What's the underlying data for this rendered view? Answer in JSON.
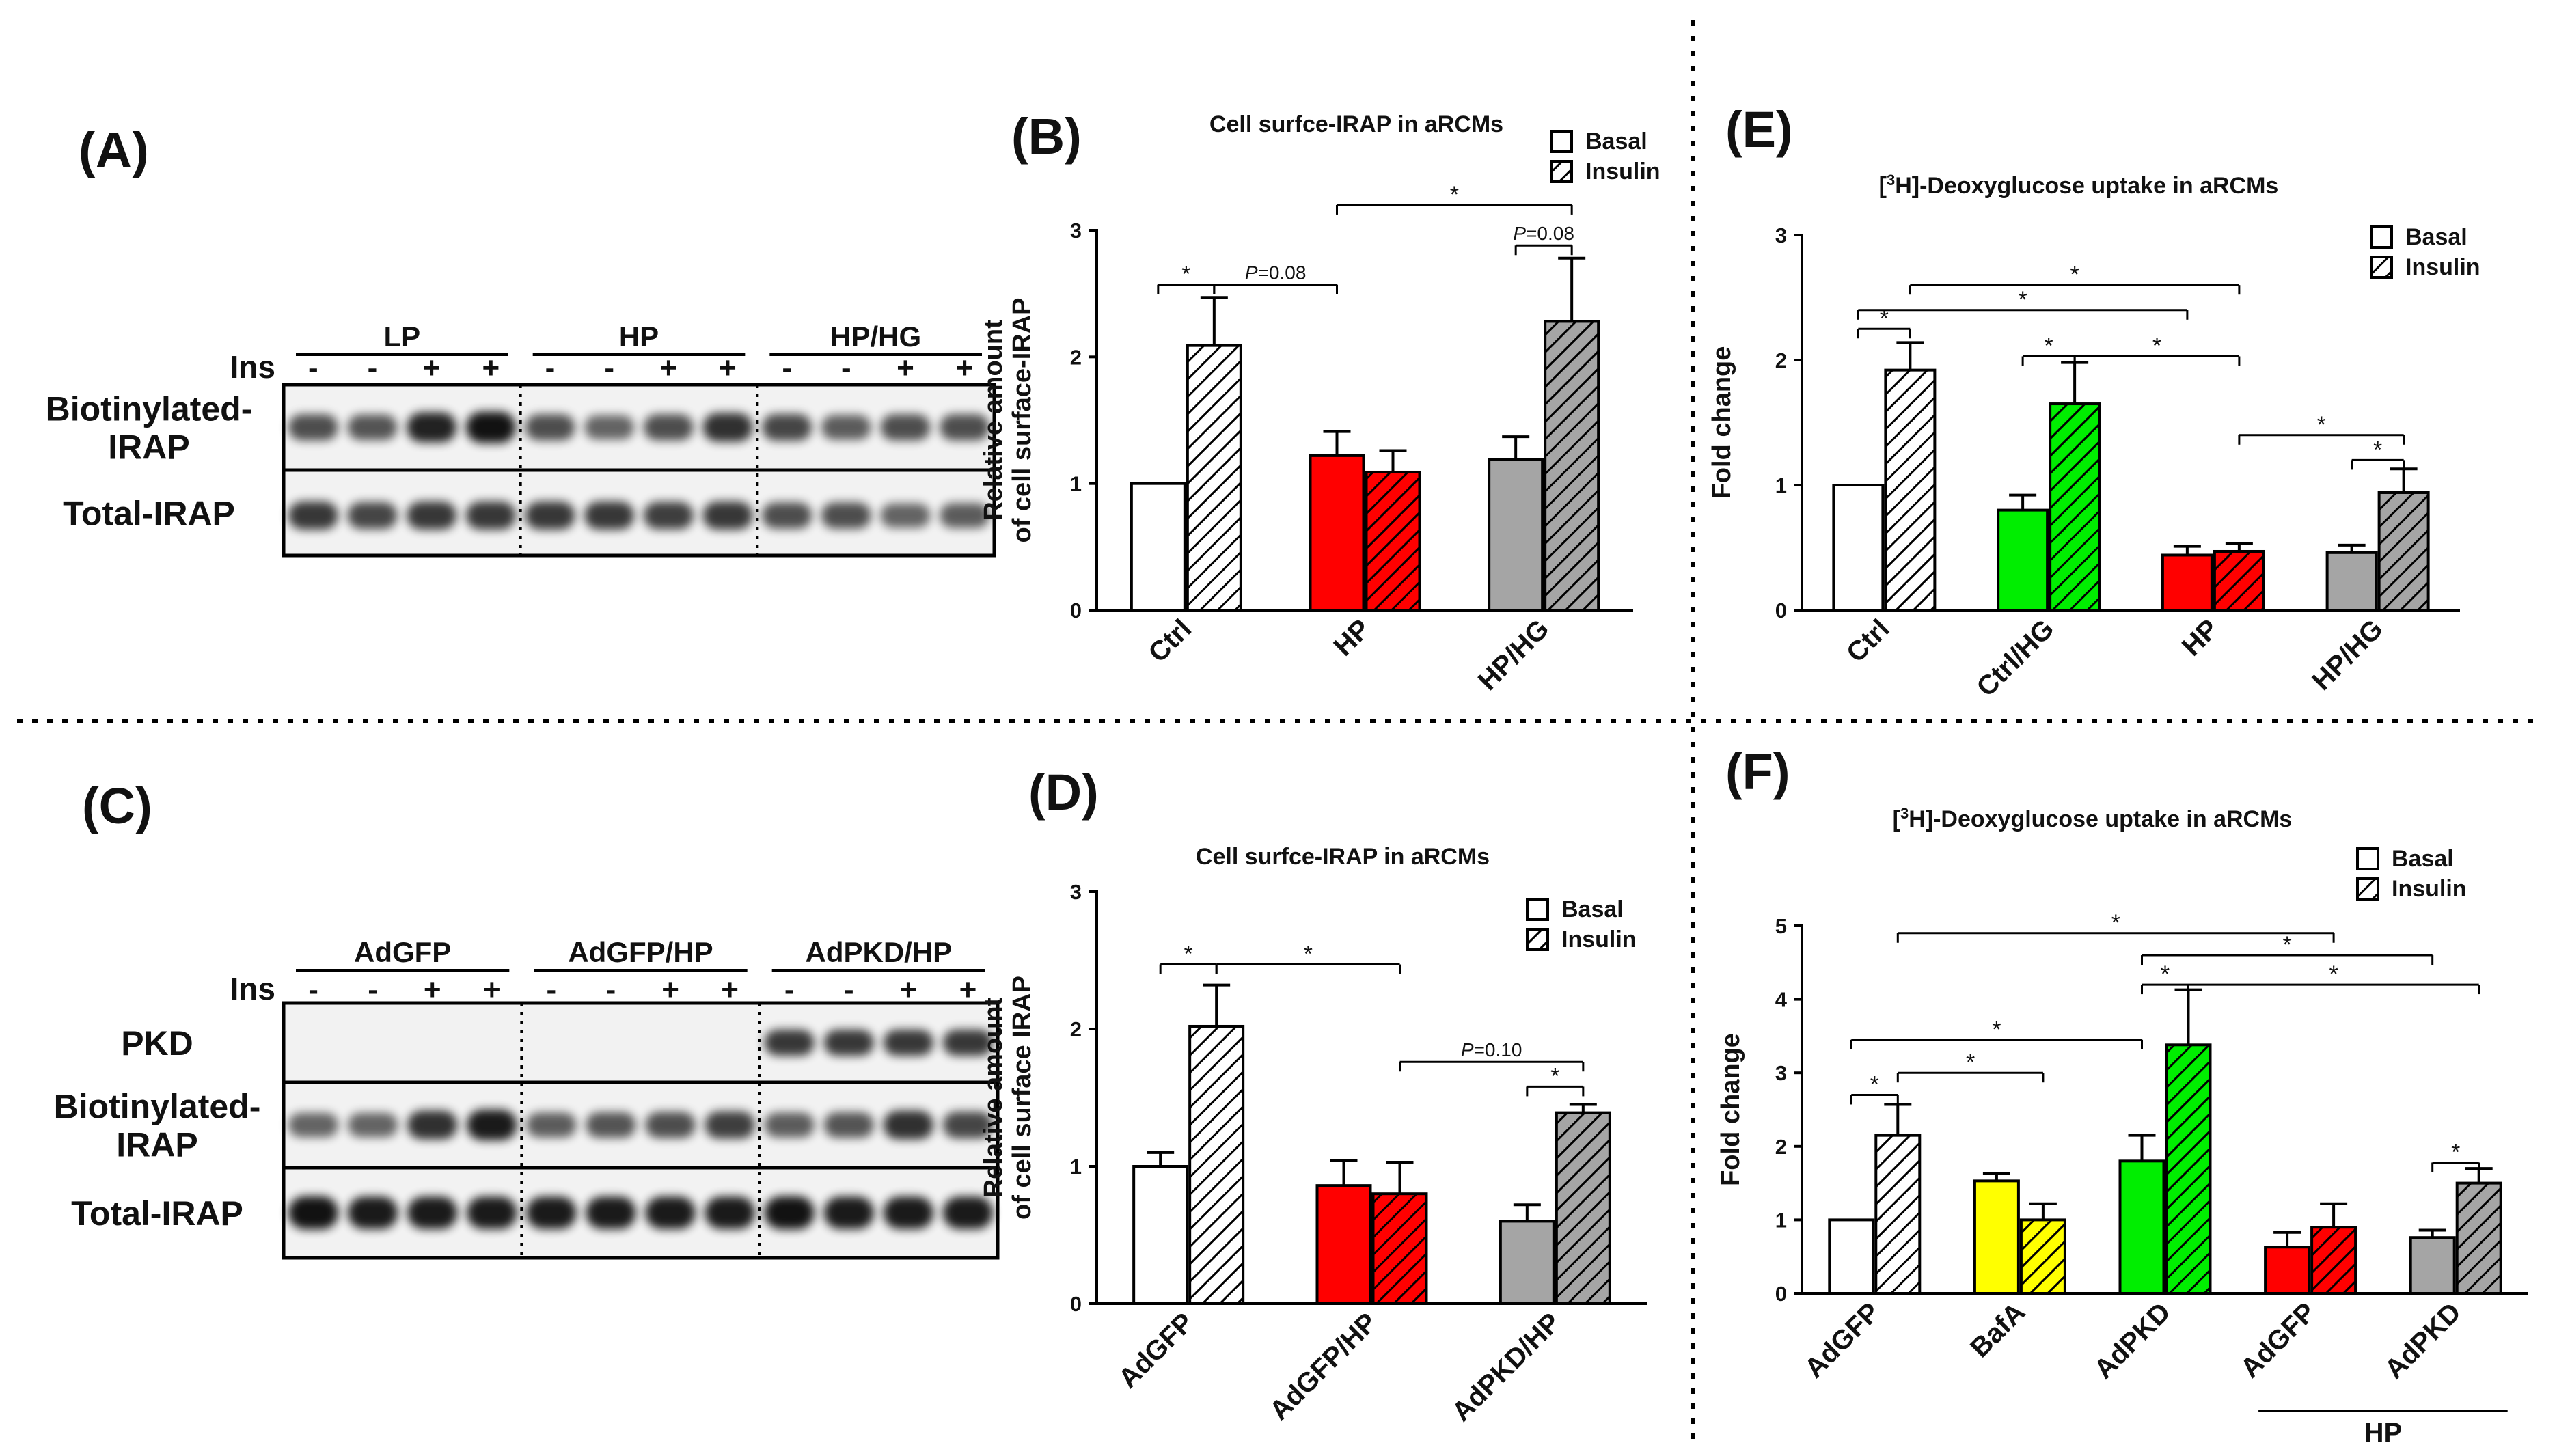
{
  "panels": {
    "A": "(A)",
    "B": "(B)",
    "C": "(C)",
    "D": "(D)",
    "E": "(E)",
    "F": "(F)"
  },
  "blot_A": {
    "groups": [
      "LP",
      "HP",
      "HP/HG"
    ],
    "ins_label": "Ins",
    "signs": [
      "-",
      "-",
      "+",
      "+",
      "-",
      "-",
      "+",
      "+",
      "-",
      "-",
      "+",
      "+"
    ],
    "rows": [
      "Biotinylated-",
      "IRAP",
      "Total-IRAP"
    ]
  },
  "blot_C": {
    "groups": [
      "AdGFP",
      "AdGFP/HP",
      "AdPKD/HP"
    ],
    "ins_label": "Ins",
    "signs": [
      "-",
      "-",
      "+",
      "+",
      "-",
      "-",
      "+",
      "+",
      "-",
      "-",
      "+",
      "+"
    ],
    "rows": [
      "PKD",
      "Biotinylated-",
      "IRAP",
      "Total-IRAP"
    ]
  },
  "chart_data": [
    {
      "panel": "B",
      "type": "bar",
      "title": "Cell surfce-IRAP in aRCMs",
      "ylabel_lines": [
        "Relative amount",
        "of cell surface-IRAP"
      ],
      "ylim": [
        0,
        3
      ],
      "yticks": [
        "0",
        "1",
        "2",
        "3"
      ],
      "categories": [
        "Ctrl",
        "HP",
        "HP/HG"
      ],
      "legend": [
        "Basal",
        "Insulin"
      ],
      "series": [
        {
          "name": "Basal",
          "values": [
            1.0,
            1.22,
            1.19
          ],
          "errors": [
            0,
            0.19,
            0.18
          ]
        },
        {
          "name": "Insulin",
          "values": [
            2.09,
            1.09,
            2.28
          ],
          "errors": [
            0.38,
            0.17,
            0.5
          ]
        }
      ],
      "colors": [
        "#ffffff",
        "#ff0000",
        "#a5a5a5"
      ],
      "annotations": [
        {
          "from": [
            0,
            0
          ],
          "to": [
            0,
            1
          ],
          "label": "*",
          "y": 2.57
        },
        {
          "from": [
            0,
            1
          ],
          "to": [
            1,
            0
          ],
          "label": "P=0.08",
          "y": 2.57
        },
        {
          "from": [
            1,
            0
          ],
          "to": [
            2,
            1
          ],
          "label": "*",
          "y": 3.2
        },
        {
          "from": [
            2,
            0
          ],
          "to": [
            2,
            1
          ],
          "label": "P=0.08",
          "y": 2.88
        }
      ]
    },
    {
      "panel": "D",
      "type": "bar",
      "title": "Cell surfce-IRAP in aRCMs",
      "ylabel_lines": [
        "Relative amount",
        "of cell surface IRAP"
      ],
      "ylim": [
        0,
        3
      ],
      "yticks": [
        "0",
        "1",
        "2",
        "3"
      ],
      "categories": [
        "AdGFP",
        "AdGFP/HP",
        "AdPKD/HP"
      ],
      "legend": [
        "Basal",
        "Insulin"
      ],
      "series": [
        {
          "name": "Basal",
          "values": [
            1.0,
            0.86,
            0.6
          ],
          "errors": [
            0.1,
            0.18,
            0.12
          ]
        },
        {
          "name": "Insulin",
          "values": [
            2.02,
            0.8,
            1.39
          ],
          "errors": [
            0.3,
            0.23,
            0.06
          ]
        }
      ],
      "colors": [
        "#ffffff",
        "#ff0000",
        "#a5a5a5"
      ],
      "annotations": [
        {
          "from": [
            0,
            0
          ],
          "to": [
            0,
            1
          ],
          "label": "*",
          "y": 2.47
        },
        {
          "from": [
            0,
            1
          ],
          "to": [
            1,
            1
          ],
          "label": "*",
          "y": 2.47
        },
        {
          "from": [
            1,
            1
          ],
          "to": [
            2,
            1
          ],
          "label": "P=0.10",
          "y": 1.76
        },
        {
          "from": [
            2,
            0
          ],
          "to": [
            2,
            1
          ],
          "label": "*",
          "y": 1.58
        }
      ]
    },
    {
      "panel": "E",
      "type": "bar",
      "title_lead": "[",
      "title_sup": "3",
      "title_rest": "H]-Deoxyglucose uptake in aRCMs",
      "ylabel_lines": [
        "Fold change"
      ],
      "ylim": [
        0,
        3
      ],
      "yticks": [
        "0",
        "1",
        "2",
        "3"
      ],
      "categories": [
        "Ctrl",
        "Ctrl/HG",
        "HP",
        "HP/HG"
      ],
      "legend": [
        "Basal",
        "Insulin"
      ],
      "series": [
        {
          "name": "Basal",
          "values": [
            1.0,
            0.8,
            0.44,
            0.46
          ],
          "errors": [
            0,
            0.12,
            0.07,
            0.06
          ]
        },
        {
          "name": "Insulin",
          "values": [
            1.92,
            1.65,
            0.47,
            0.94
          ],
          "errors": [
            0.22,
            0.33,
            0.06,
            0.19
          ]
        }
      ],
      "colors": [
        "#ffffff",
        "#00ee00",
        "#ff0000",
        "#a5a5a5"
      ],
      "annotations": [
        {
          "from": [
            0,
            0
          ],
          "to": [
            0,
            1
          ],
          "label": "*",
          "y": 2.25
        },
        {
          "from": [
            0,
            0
          ],
          "to": [
            2,
            0
          ],
          "label": "*",
          "y": 2.4
        },
        {
          "from": [
            0,
            1
          ],
          "to": [
            2,
            1
          ],
          "label": "*",
          "y": 2.6
        },
        {
          "from": [
            1,
            0
          ],
          "to": [
            1,
            1
          ],
          "label": "*",
          "y": 2.03
        },
        {
          "from": [
            1,
            1
          ],
          "to": [
            2,
            1
          ],
          "label": "*",
          "y": 2.03
        },
        {
          "from": [
            2,
            1
          ],
          "to": [
            3,
            1
          ],
          "label": "*",
          "y": 1.4
        },
        {
          "from": [
            3,
            0
          ],
          "to": [
            3,
            1
          ],
          "label": "*",
          "y": 1.2
        }
      ]
    },
    {
      "panel": "F",
      "type": "bar",
      "title_lead": "[",
      "title_sup": "3",
      "title_rest": "H]-Deoxyglucose uptake in aRCMs",
      "ylabel_lines": [
        "Fold change"
      ],
      "ylim": [
        0,
        5
      ],
      "yticks": [
        "0",
        "1",
        "2",
        "3",
        "4",
        "5"
      ],
      "categories": [
        "AdGFP",
        "BafA",
        "AdPKD",
        "AdGFP",
        "AdPKD"
      ],
      "group_label": "HP",
      "group_span": [
        3,
        4
      ],
      "legend": [
        "Basal",
        "Insulin"
      ],
      "series": [
        {
          "name": "Basal",
          "values": [
            1.0,
            1.53,
            1.8,
            0.63,
            0.76
          ],
          "errors": [
            0,
            0.1,
            0.35,
            0.2,
            0.1
          ]
        },
        {
          "name": "Insulin",
          "values": [
            2.15,
            1.0,
            3.38,
            0.9,
            1.5
          ],
          "errors": [
            0.42,
            0.22,
            0.75,
            0.32,
            0.2
          ]
        }
      ],
      "colors": [
        "#ffffff",
        "#ffff00",
        "#00ee00",
        "#ff0000",
        "#a5a5a5"
      ],
      "annotations": [
        {
          "from": [
            0,
            0
          ],
          "to": [
            0,
            1
          ],
          "label": "*",
          "y": 2.7
        },
        {
          "from": [
            0,
            0
          ],
          "to": [
            2,
            0
          ],
          "label": "*",
          "y": 3.45
        },
        {
          "from": [
            0,
            1
          ],
          "to": [
            1,
            1
          ],
          "label": "*",
          "y": 3.0
        },
        {
          "from": [
            0,
            1
          ],
          "to": [
            3,
            1
          ],
          "label": "*",
          "y": 4.9
        },
        {
          "from": [
            2,
            0
          ],
          "to": [
            2,
            1
          ],
          "label": "*",
          "y": 4.2
        },
        {
          "from": [
            2,
            0
          ],
          "to": [
            4,
            0
          ],
          "label": "*",
          "y": 4.6
        },
        {
          "from": [
            2,
            1
          ],
          "to": [
            4,
            1
          ],
          "label": "*",
          "y": 4.2
        },
        {
          "from": [
            4,
            0
          ],
          "to": [
            4,
            1
          ],
          "label": "*",
          "y": 1.78
        }
      ]
    }
  ]
}
